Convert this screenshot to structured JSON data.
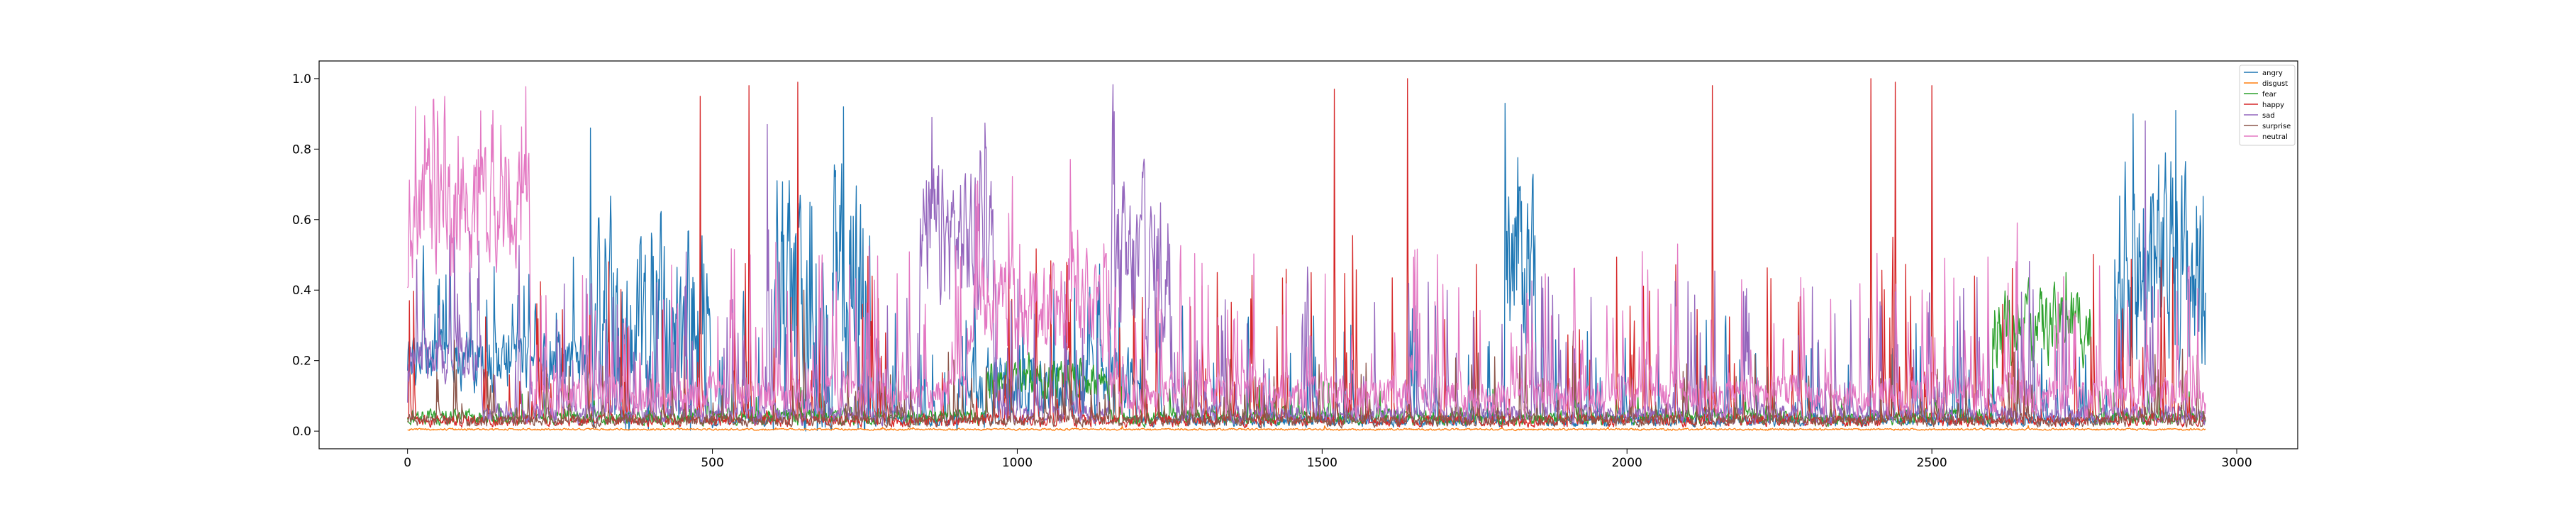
{
  "chart_data": {
    "type": "line",
    "title": "",
    "xlabel": "",
    "ylabel": "",
    "xlim": [
      -145,
      3100
    ],
    "ylim": [
      -0.05,
      1.05
    ],
    "xticks": [
      0,
      500,
      1000,
      1500,
      2000,
      2500,
      3000
    ],
    "yticks": [
      0.0,
      0.2,
      0.4,
      0.6,
      0.8,
      1.0
    ],
    "xtick_labels": [
      "0",
      "500",
      "1000",
      "1500",
      "2000",
      "2500",
      "3000"
    ],
    "ytick_labels": [
      "0.0",
      "0.2",
      "0.4",
      "0.6",
      "0.8",
      "1.0"
    ],
    "n_points": 2950,
    "grid": false,
    "legend_position": "top-right",
    "series": [
      {
        "name": "angry",
        "color": "#1f77b4",
        "baseline": 0.03,
        "spike_rate": 0.06,
        "spike_max": 0.55,
        "segments": [
          {
            "x": [
              0,
              300
            ],
            "level": 0.2,
            "spread": 0.12
          },
          {
            "x": [
              300,
              500
            ],
            "level": 0.25,
            "spread": 0.4
          },
          {
            "x": [
              600,
              760
            ],
            "level": 0.35,
            "spread": 0.55
          },
          {
            "x": [
              900,
              1200
            ],
            "level": 0.12,
            "spread": 0.15
          },
          {
            "x": [
              1800,
              1850
            ],
            "level": 0.5,
            "spread": 0.4
          },
          {
            "x": [
              2800,
              2950
            ],
            "level": 0.45,
            "spread": 0.45
          }
        ],
        "peaks": [
          [
            300,
            0.86
          ],
          [
            715,
            0.92
          ],
          [
            1800,
            0.93
          ],
          [
            2830,
            0.9
          ],
          [
            2900,
            0.91
          ]
        ]
      },
      {
        "name": "disgust",
        "color": "#ff7f0e",
        "baseline": 0.005,
        "spike_rate": 0.003,
        "spike_max": 0.02,
        "segments": [],
        "peaks": []
      },
      {
        "name": "fear",
        "color": "#2ca02c",
        "baseline": 0.04,
        "spike_rate": 0.03,
        "spike_max": 0.18,
        "segments": [
          {
            "x": [
              950,
              1150
            ],
            "level": 0.15,
            "spread": 0.08
          },
          {
            "x": [
              2600,
              2760
            ],
            "level": 0.3,
            "spread": 0.15
          }
        ],
        "peaks": [
          [
            2720,
            0.45
          ]
        ]
      },
      {
        "name": "happy",
        "color": "#d62728",
        "baseline": 0.03,
        "spike_rate": 0.05,
        "spike_max": 0.85,
        "segments": [],
        "peaks": [
          [
            480,
            0.95
          ],
          [
            560,
            0.98
          ],
          [
            640,
            0.99
          ],
          [
            1520,
            0.97
          ],
          [
            1640,
            1.0
          ],
          [
            2140,
            0.98
          ],
          [
            2400,
            1.0
          ],
          [
            2440,
            0.99
          ],
          [
            2500,
            0.98
          ]
        ]
      },
      {
        "name": "sad",
        "color": "#9467bd",
        "baseline": 0.05,
        "spike_rate": 0.07,
        "spike_max": 0.7,
        "segments": [
          {
            "x": [
              0,
              120
            ],
            "level": 0.2,
            "spread": 0.1
          },
          {
            "x": [
              840,
              960
            ],
            "level": 0.55,
            "spread": 0.3
          },
          {
            "x": [
              1150,
              1250
            ],
            "level": 0.45,
            "spread": 0.35
          }
        ],
        "peaks": [
          [
            590,
            0.87
          ],
          [
            860,
            0.89
          ],
          [
            2850,
            0.88
          ]
        ]
      },
      {
        "name": "surprise",
        "color": "#8c564b",
        "baseline": 0.03,
        "spike_rate": 0.05,
        "spike_max": 0.35,
        "segments": [],
        "peaks": [
          [
            650,
            0.4
          ]
        ]
      },
      {
        "name": "neutral",
        "color": "#e377c2",
        "baseline": 0.1,
        "spike_rate": 0.08,
        "spike_max": 0.75,
        "segments": [
          {
            "x": [
              0,
              200
            ],
            "level": 0.6,
            "spread": 0.25
          },
          {
            "x": [
              920,
              1150
            ],
            "level": 0.35,
            "spread": 0.2
          }
        ],
        "peaks": [
          [
            140,
            0.91
          ],
          [
            60,
            0.88
          ]
        ]
      }
    ]
  }
}
